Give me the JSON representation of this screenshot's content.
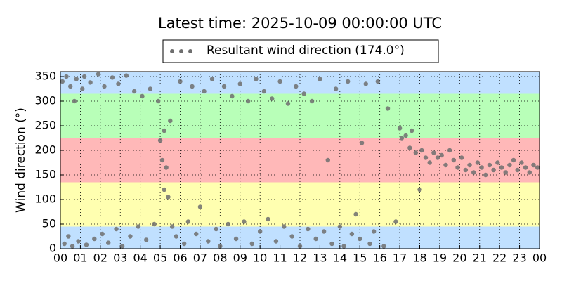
{
  "chart_data": {
    "type": "scatter",
    "title": "Latest time: 2025-10-09 00:00:00 UTC",
    "y_label": "Wind direction (°)",
    "legend_position": "top",
    "grid": true,
    "xlim": [
      0,
      24
    ],
    "xticks": [
      {
        "value": 0,
        "label": "00"
      },
      {
        "value": 1,
        "label": "01"
      },
      {
        "value": 2,
        "label": "02"
      },
      {
        "value": 3,
        "label": "03"
      },
      {
        "value": 4,
        "label": "04"
      },
      {
        "value": 5,
        "label": "05"
      },
      {
        "value": 6,
        "label": "06"
      },
      {
        "value": 7,
        "label": "07"
      },
      {
        "value": 8,
        "label": "08"
      },
      {
        "value": 9,
        "label": "09"
      },
      {
        "value": 10,
        "label": "10"
      },
      {
        "value": 11,
        "label": "11"
      },
      {
        "value": 12,
        "label": "12"
      },
      {
        "value": 13,
        "label": "13"
      },
      {
        "value": 14,
        "label": "14"
      },
      {
        "value": 15,
        "label": "15"
      },
      {
        "value": 16,
        "label": "16"
      },
      {
        "value": 17,
        "label": "17"
      },
      {
        "value": 18,
        "label": "18"
      },
      {
        "value": 19,
        "label": "19"
      },
      {
        "value": 20,
        "label": "20"
      },
      {
        "value": 21,
        "label": "21"
      },
      {
        "value": 22,
        "label": "22"
      },
      {
        "value": 23,
        "label": "23"
      },
      {
        "value": 24,
        "label": "00"
      }
    ],
    "ylim": [
      0,
      360
    ],
    "yticks": [
      0,
      50,
      100,
      150,
      200,
      250,
      300,
      350
    ],
    "bands": [
      {
        "from": 0,
        "to": 45,
        "color": "#c0e0ff"
      },
      {
        "from": 45,
        "to": 135,
        "color": "#ffffb0"
      },
      {
        "from": 135,
        "to": 225,
        "color": "#ffb8b8"
      },
      {
        "from": 225,
        "to": 315,
        "color": "#b8ffb8"
      },
      {
        "from": 315,
        "to": 360,
        "color": "#c0e0ff"
      }
    ],
    "series": [
      {
        "name": "Resultant wind direction (174.0°)",
        "color": "#6e6e6e",
        "x": [
          0.1,
          0.2,
          0.3,
          0.4,
          0.5,
          0.6,
          0.7,
          0.8,
          0.9,
          1.1,
          1.2,
          1.3,
          1.5,
          1.7,
          1.9,
          2.1,
          2.2,
          2.4,
          2.6,
          2.8,
          2.9,
          3.1,
          3.3,
          3.5,
          3.7,
          3.9,
          4.1,
          4.3,
          4.5,
          4.7,
          4.9,
          5.0,
          5.1,
          5.2,
          5.2,
          5.3,
          5.4,
          5.5,
          5.6,
          5.8,
          6.0,
          6.2,
          6.4,
          6.6,
          6.8,
          7.0,
          7.2,
          7.4,
          7.6,
          7.8,
          8.0,
          8.2,
          8.4,
          8.6,
          8.8,
          9.0,
          9.2,
          9.4,
          9.6,
          9.8,
          10.0,
          10.2,
          10.4,
          10.6,
          10.8,
          11.0,
          11.2,
          11.4,
          11.6,
          11.8,
          12.0,
          12.2,
          12.4,
          12.6,
          12.8,
          13.0,
          13.2,
          13.4,
          13.6,
          13.8,
          14.0,
          14.2,
          14.4,
          14.6,
          14.8,
          15.0,
          15.1,
          15.3,
          15.5,
          15.7,
          15.9,
          16.2,
          16.4,
          16.8,
          17.0,
          17.1,
          17.3,
          17.5,
          17.6,
          17.8,
          18.0,
          18.1,
          18.3,
          18.5,
          18.7,
          18.9,
          19.1,
          19.3,
          19.5,
          19.7,
          19.9,
          20.1,
          20.3,
          20.5,
          20.7,
          20.9,
          21.1,
          21.3,
          21.5,
          21.7,
          21.9,
          22.1,
          22.3,
          22.5,
          22.7,
          22.9,
          23.1,
          23.3,
          23.5,
          23.7,
          23.9
        ],
        "values": [
          340,
          10,
          350,
          25,
          330,
          5,
          300,
          345,
          15,
          325,
          350,
          8,
          338,
          20,
          355,
          30,
          330,
          12,
          348,
          40,
          335,
          5,
          352,
          25,
          320,
          45,
          310,
          18,
          325,
          50,
          300,
          220,
          180,
          240,
          120,
          165,
          105,
          260,
          45,
          25,
          340,
          10,
          55,
          330,
          30,
          85,
          320,
          15,
          345,
          40,
          5,
          330,
          50,
          310,
          20,
          335,
          55,
          300,
          10,
          345,
          35,
          320,
          60,
          305,
          15,
          340,
          45,
          295,
          25,
          330,
          5,
          315,
          40,
          300,
          20,
          345,
          35,
          180,
          10,
          325,
          45,
          5,
          340,
          30,
          70,
          20,
          215,
          335,
          10,
          35,
          340,
          5,
          285,
          55,
          245,
          225,
          230,
          205,
          240,
          195,
          120,
          200,
          185,
          175,
          195,
          185,
          190,
          170,
          200,
          180,
          165,
          185,
          160,
          170,
          155,
          175,
          165,
          150,
          170,
          160,
          175,
          165,
          155,
          170,
          180,
          160,
          175,
          165,
          155,
          170,
          165
        ]
      }
    ]
  }
}
